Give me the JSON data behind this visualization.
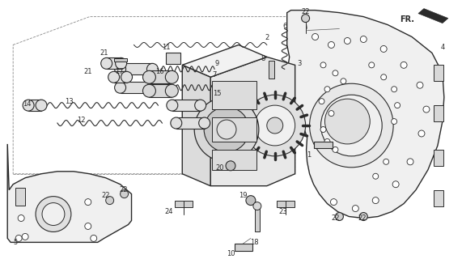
{
  "bg_color": "#ffffff",
  "line_color": "#2a2a2a",
  "figsize": [
    5.71,
    3.2
  ],
  "dpi": 100,
  "fr_label": "FR."
}
